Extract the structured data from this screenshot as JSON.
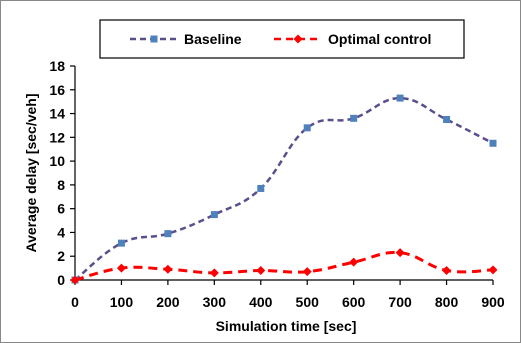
{
  "chart_data": {
    "type": "line",
    "xlabel": "Simulation time  [sec]",
    "ylabel": "Average delay  [sec/veh]",
    "x": [
      0,
      100,
      200,
      300,
      400,
      500,
      600,
      700,
      800,
      900
    ],
    "xlim": [
      0,
      900
    ],
    "ylim": [
      0,
      18
    ],
    "x_ticks": [
      "0",
      "100",
      "200",
      "300",
      "400",
      "500",
      "600",
      "700",
      "800",
      "900"
    ],
    "y_ticks": [
      "0",
      "2",
      "4",
      "6",
      "8",
      "10",
      "12",
      "14",
      "16",
      "18"
    ],
    "grid": false,
    "legend_position": "top",
    "series": [
      {
        "name": "Baseline",
        "values": [
          0.0,
          3.1,
          3.9,
          5.5,
          7.7,
          12.8,
          13.6,
          15.3,
          13.5,
          11.5
        ],
        "color": "#5b4e8c",
        "marker_color": "#4f81bd",
        "marker": "square",
        "line_style": "dashed"
      },
      {
        "name": "Optimal control",
        "values": [
          0.0,
          1.0,
          0.9,
          0.6,
          0.8,
          0.7,
          1.5,
          2.3,
          0.8,
          0.85
        ],
        "color": "#ff0000",
        "marker_color": "#ff0000",
        "marker": "diamond",
        "line_style": "dashed"
      }
    ]
  }
}
